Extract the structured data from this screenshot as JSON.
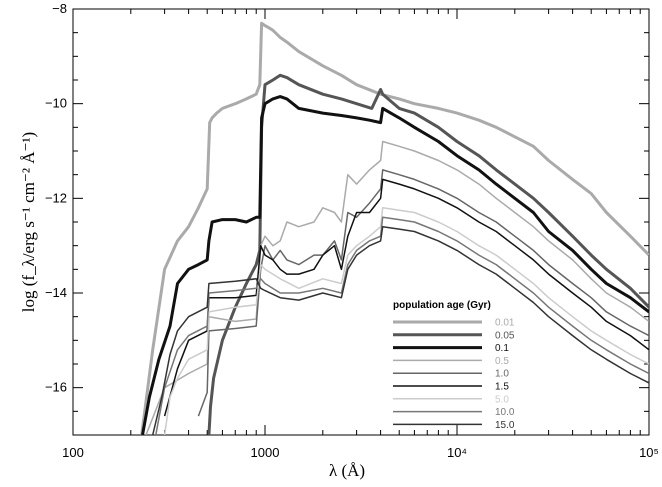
{
  "chart_data": {
    "type": "line",
    "xlabel": "λ (Å)",
    "ylabel": "log (f_λ/erg s⁻¹ cm⁻² Å⁻¹)",
    "x_scale": "log",
    "xlim": [
      100,
      100000
    ],
    "ylim": [
      -17,
      -8
    ],
    "x_ticks": [
      {
        "value": 100,
        "label": "100"
      },
      {
        "value": 1000,
        "label": "1000"
      },
      {
        "value": 10000,
        "label": "10⁴"
      },
      {
        "value": 100000,
        "label": "10⁵"
      }
    ],
    "y_ticks": [
      {
        "value": -16,
        "label": "−16"
      },
      {
        "value": -14,
        "label": "−14"
      },
      {
        "value": -12,
        "label": "−12"
      },
      {
        "value": -10,
        "label": "−10"
      },
      {
        "value": -8,
        "label": "−8"
      }
    ],
    "legend": {
      "title": "population age (Gyr)",
      "position": "lower-right"
    },
    "series": [
      {
        "name": "0.01",
        "color": "#aaaaaa",
        "width": 3,
        "x": [
          228,
          260,
          300,
          350,
          400,
          450,
          500,
          515,
          530,
          560,
          600,
          700,
          800,
          900,
          940,
          960,
          1000,
          1050,
          1100,
          1200,
          1300,
          1500,
          2000,
          2500,
          3000,
          4000,
          5000,
          6000,
          8000,
          10000,
          13000,
          16000,
          20000,
          25000,
          30000,
          40000,
          50000,
          60000,
          80000,
          100000
        ],
        "y": [
          -17,
          -15.2,
          -13.5,
          -12.9,
          -12.6,
          -12.2,
          -11.8,
          -10.4,
          -10.3,
          -10.2,
          -10.1,
          -10.0,
          -9.9,
          -9.8,
          -9.6,
          -8.3,
          -8.35,
          -8.4,
          -8.45,
          -8.6,
          -8.7,
          -8.9,
          -9.2,
          -9.4,
          -9.6,
          -9.8,
          -9.9,
          -10.0,
          -10.1,
          -10.2,
          -10.35,
          -10.5,
          -10.7,
          -10.9,
          -11.2,
          -11.6,
          -11.9,
          -12.3,
          -12.8,
          -13.2
        ]
      },
      {
        "name": "0.05",
        "color": "#555555",
        "width": 3,
        "x": [
          510,
          520,
          540,
          600,
          700,
          800,
          900,
          940,
          960,
          1000,
          1100,
          1200,
          1300,
          1500,
          2000,
          2500,
          3000,
          3600,
          4000,
          4100,
          5000,
          6000,
          8000,
          10000,
          13000,
          16000,
          20000,
          25000,
          30000,
          40000,
          50000,
          60000,
          80000,
          100000
        ],
        "y": [
          -17,
          -16.4,
          -15.8,
          -15.0,
          -14.3,
          -13.8,
          -13.4,
          -13.1,
          -10.5,
          -9.6,
          -9.5,
          -9.4,
          -9.45,
          -9.6,
          -9.8,
          -9.9,
          -10.0,
          -10.1,
          -9.7,
          -9.8,
          -10.1,
          -10.2,
          -10.5,
          -10.8,
          -11.1,
          -11.4,
          -11.7,
          -12.0,
          -12.3,
          -12.8,
          -13.2,
          -13.5,
          -13.9,
          -14.3
        ]
      },
      {
        "name": "0.1",
        "color": "#111111",
        "width": 3,
        "x": [
          230,
          250,
          280,
          320,
          350,
          400,
          450,
          500,
          510,
          530,
          600,
          700,
          800,
          900,
          940,
          960,
          1000,
          1100,
          1200,
          1300,
          1500,
          2000,
          2500,
          3000,
          3500,
          4000,
          4100,
          5000,
          6000,
          8000,
          10000,
          13000,
          16000,
          20000,
          25000,
          30000,
          40000,
          50000,
          60000,
          80000,
          100000
        ],
        "y": [
          -17,
          -16.2,
          -15.4,
          -14.7,
          -13.8,
          -13.5,
          -13.4,
          -13.3,
          -12.9,
          -12.5,
          -12.45,
          -12.45,
          -12.5,
          -12.4,
          -12.4,
          -10.3,
          -10.0,
          -9.9,
          -9.85,
          -9.9,
          -10.1,
          -10.2,
          -10.25,
          -10.3,
          -10.35,
          -10.4,
          -10.1,
          -10.3,
          -10.5,
          -10.8,
          -11.1,
          -11.4,
          -11.7,
          -12.0,
          -12.3,
          -12.7,
          -13.1,
          -13.5,
          -13.8,
          -14.1,
          -14.4
        ]
      },
      {
        "name": "0.5",
        "color": "#aaaaaa",
        "width": 1.5,
        "x": [
          240,
          300,
          400,
          500,
          510,
          700,
          900,
          950,
          1000,
          1100,
          1200,
          1300,
          1500,
          1800,
          2000,
          2300,
          2500,
          2700,
          3000,
          3500,
          4000,
          4100,
          5000,
          6000,
          8000,
          10000,
          13000,
          16000,
          20000,
          25000,
          30000,
          40000,
          50000,
          60000,
          80000,
          100000
        ],
        "y": [
          -17,
          -16.0,
          -15.7,
          -15.5,
          -14.5,
          -14.6,
          -14.55,
          -13.0,
          -12.8,
          -13.0,
          -12.9,
          -12.5,
          -12.6,
          -12.5,
          -12.2,
          -12.3,
          -12.5,
          -11.5,
          -11.7,
          -11.4,
          -11.2,
          -10.8,
          -10.9,
          -11.0,
          -11.2,
          -11.4,
          -11.7,
          -12.0,
          -12.3,
          -12.6,
          -12.9,
          -13.3,
          -13.7,
          -14.0,
          -14.3,
          -14.6
        ]
      },
      {
        "name": "1.0",
        "color": "#666666",
        "width": 1.5,
        "x": [
          450,
          500,
          510,
          700,
          900,
          950,
          1000,
          1100,
          1200,
          1300,
          1500,
          1800,
          2000,
          2300,
          2500,
          2700,
          3000,
          3500,
          4000,
          4100,
          5000,
          6000,
          8000,
          10000,
          13000,
          16000,
          20000,
          25000,
          30000,
          40000,
          50000,
          60000,
          80000,
          100000
        ],
        "y": [
          -16.6,
          -16.1,
          -14.8,
          -14.75,
          -14.7,
          -13.5,
          -13.0,
          -13.3,
          -13.1,
          -13.3,
          -13.4,
          -13.2,
          -13.2,
          -12.9,
          -13.3,
          -12.3,
          -12.4,
          -12.1,
          -11.8,
          -11.4,
          -11.5,
          -11.6,
          -11.8,
          -12.0,
          -12.3,
          -12.5,
          -12.8,
          -13.1,
          -13.4,
          -13.8,
          -14.1,
          -14.4,
          -14.7,
          -14.9
        ]
      },
      {
        "name": "1.5",
        "color": "#111111",
        "width": 1.5,
        "x": [
          300,
          350,
          400,
          500,
          510,
          700,
          900,
          950,
          1000,
          1100,
          1200,
          1300,
          1500,
          1800,
          2000,
          2300,
          2500,
          2700,
          3000,
          3500,
          4000,
          4100,
          5000,
          6000,
          8000,
          10000,
          13000,
          16000,
          20000,
          25000,
          30000,
          40000,
          50000,
          60000,
          80000,
          100000
        ],
        "y": [
          -16.6,
          -15.6,
          -15.0,
          -14.8,
          -14.1,
          -14.1,
          -14.05,
          -13.0,
          -13.2,
          -13.3,
          -13.5,
          -13.6,
          -13.6,
          -13.5,
          -13.2,
          -13.0,
          -13.5,
          -12.8,
          -12.3,
          -12.3,
          -12.0,
          -11.6,
          -11.7,
          -11.8,
          -12.0,
          -12.2,
          -12.5,
          -12.7,
          -13.0,
          -13.3,
          -13.6,
          -14.0,
          -14.3,
          -14.6,
          -14.9,
          -15.2
        ]
      },
      {
        "name": "5.0",
        "color": "#cccccc",
        "width": 1.5,
        "x": [
          300,
          320,
          350,
          400,
          500,
          510,
          700,
          900,
          950,
          1000,
          1200,
          1500,
          2000,
          2500,
          2700,
          3000,
          3500,
          4000,
          4100,
          5000,
          6000,
          8000,
          10000,
          13000,
          16000,
          20000,
          25000,
          30000,
          40000,
          50000,
          60000,
          80000,
          100000
        ],
        "y": [
          -17,
          -16.2,
          -15.8,
          -15.4,
          -15.2,
          -14.4,
          -14.3,
          -14.25,
          -13.4,
          -13.5,
          -13.7,
          -13.9,
          -13.7,
          -13.8,
          -13.2,
          -13.0,
          -12.8,
          -12.6,
          -12.2,
          -12.25,
          -12.3,
          -12.5,
          -12.7,
          -13.0,
          -13.2,
          -13.5,
          -13.8,
          -14.1,
          -14.5,
          -14.8,
          -15.0,
          -15.3,
          -15.5
        ]
      },
      {
        "name": "10.0",
        "color": "#777777",
        "width": 1.5,
        "x": [
          270,
          300,
          350,
          400,
          500,
          510,
          700,
          900,
          950,
          1000,
          1200,
          1500,
          2000,
          2500,
          2700,
          3000,
          3500,
          4000,
          4100,
          5000,
          6000,
          8000,
          10000,
          13000,
          16000,
          20000,
          25000,
          30000,
          40000,
          50000,
          60000,
          80000,
          100000
        ],
        "y": [
          -17,
          -16.0,
          -15.2,
          -14.9,
          -14.7,
          -14.0,
          -13.95,
          -13.9,
          -13.7,
          -13.8,
          -14.0,
          -14.0,
          -13.9,
          -14.0,
          -13.4,
          -13.1,
          -12.9,
          -12.8,
          -12.4,
          -12.45,
          -12.5,
          -12.7,
          -12.9,
          -13.2,
          -13.4,
          -13.7,
          -14.0,
          -14.3,
          -14.7,
          -15.0,
          -15.2,
          -15.5,
          -15.7
        ]
      },
      {
        "name": "15.0",
        "color": "#333333",
        "width": 1.5,
        "x": [
          260,
          290,
          320,
          350,
          400,
          500,
          510,
          700,
          900,
          950,
          1000,
          1200,
          1500,
          2000,
          2500,
          2700,
          3000,
          3500,
          4000,
          4100,
          5000,
          6000,
          8000,
          10000,
          13000,
          16000,
          20000,
          25000,
          30000,
          40000,
          50000,
          60000,
          80000,
          100000
        ],
        "y": [
          -17,
          -16.2,
          -15.3,
          -14.8,
          -14.5,
          -14.3,
          -13.8,
          -13.75,
          -13.7,
          -13.9,
          -13.95,
          -14.1,
          -14.15,
          -14.0,
          -14.1,
          -13.5,
          -13.2,
          -13.0,
          -12.9,
          -12.6,
          -12.65,
          -12.7,
          -12.9,
          -13.1,
          -13.4,
          -13.6,
          -13.9,
          -14.2,
          -14.5,
          -14.9,
          -15.2,
          -15.4,
          -15.7,
          -15.9
        ]
      }
    ]
  }
}
